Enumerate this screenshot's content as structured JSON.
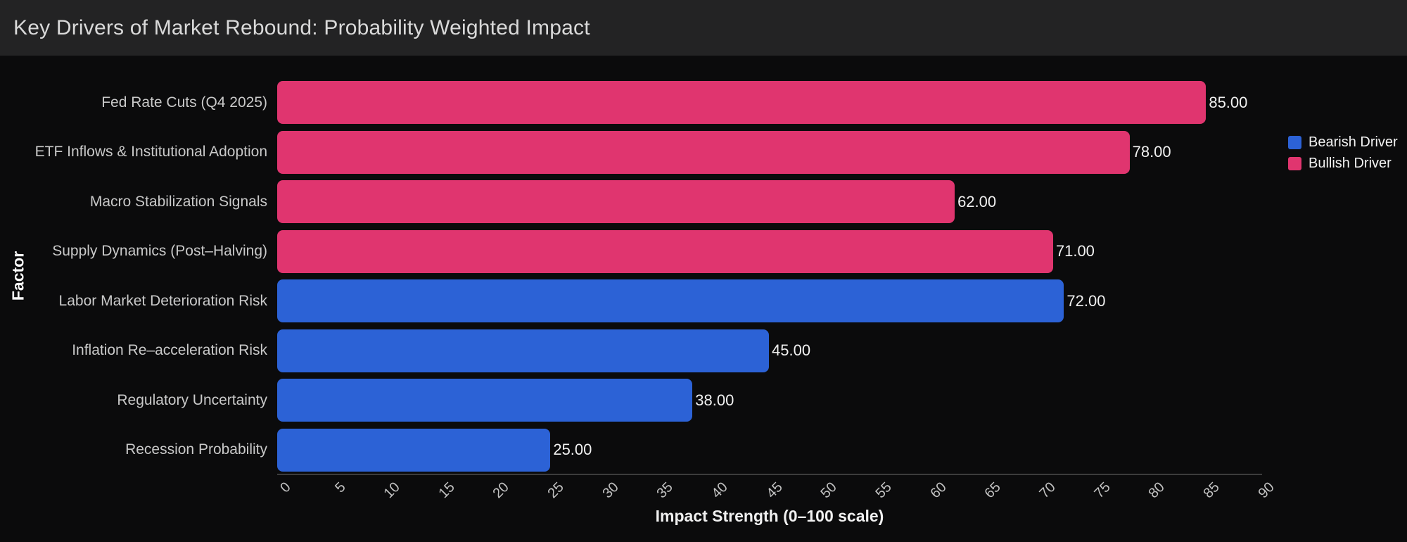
{
  "header": {
    "title": "Key Drivers of Market Rebound: Probability Weighted Impact"
  },
  "chart_data": {
    "type": "bar",
    "orientation": "horizontal",
    "title": "Key Drivers of Market Rebound: Probability Weighted Impact",
    "xlabel": "Impact Strength (0–100 scale)",
    "ylabel": "Factor",
    "xlim": [
      0,
      90
    ],
    "xtick_step": 5,
    "xtick_labels": [
      "0",
      "5",
      "10",
      "15",
      "20",
      "25",
      "30",
      "35",
      "40",
      "45",
      "50",
      "55",
      "60",
      "65",
      "70",
      "75",
      "80",
      "85",
      "90"
    ],
    "grid": false,
    "background_color": "#0b0b0c",
    "header_color": "#232324",
    "legend": {
      "position": "top-right",
      "entries": [
        {
          "label": "Bearish Driver",
          "color": "#2c62d6"
        },
        {
          "label": "Bullish Driver",
          "color": "#e0356f"
        }
      ]
    },
    "bars": [
      {
        "label": "Fed Rate Cuts (Q4 2025)",
        "value": 85,
        "value_label": "85.00",
        "series": "Bullish Driver",
        "color": "#e0356f"
      },
      {
        "label": "ETF Inflows & Institutional Adoption",
        "value": 78,
        "value_label": "78.00",
        "series": "Bullish Driver",
        "color": "#e0356f"
      },
      {
        "label": "Macro Stabilization Signals",
        "value": 62,
        "value_label": "62.00",
        "series": "Bullish Driver",
        "color": "#e0356f"
      },
      {
        "label": "Supply Dynamics (Post–Halving)",
        "value": 71,
        "value_label": "71.00",
        "series": "Bullish Driver",
        "color": "#e0356f"
      },
      {
        "label": "Labor Market Deterioration Risk",
        "value": 72,
        "value_label": "72.00",
        "series": "Bearish Driver",
        "color": "#2c62d6"
      },
      {
        "label": "Inflation Re–acceleration Risk",
        "value": 45,
        "value_label": "45.00",
        "series": "Bearish Driver",
        "color": "#2c62d6"
      },
      {
        "label": "Regulatory Uncertainty",
        "value": 38,
        "value_label": "38.00",
        "series": "Bearish Driver",
        "color": "#2c62d6"
      },
      {
        "label": "Recession Probability",
        "value": 25,
        "value_label": "25.00",
        "series": "Bearish Driver",
        "color": "#2c62d6"
      }
    ]
  }
}
